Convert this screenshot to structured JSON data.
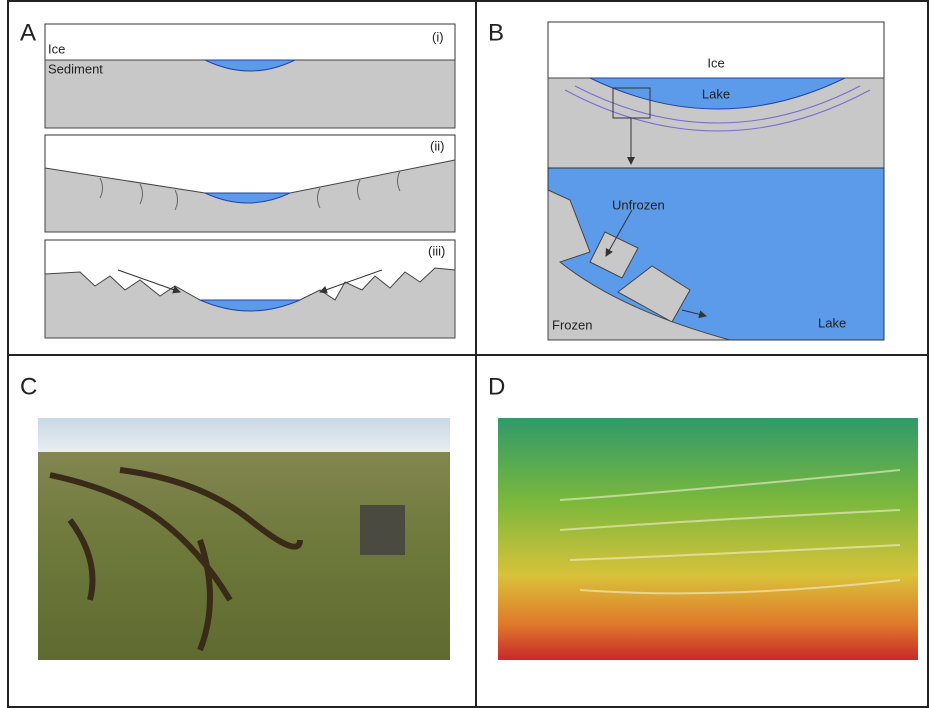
{
  "panel_a": {
    "label": "A",
    "ice": "Ice",
    "sediment": "Sediment",
    "stages": [
      "(i)",
      "(ii)",
      "(iii)"
    ]
  },
  "panel_b": {
    "label": "B",
    "ice": "Ice",
    "lake": "Lake",
    "unfrozen": "Unfrozen",
    "frozen": "Frozen",
    "lake_detail": "Lake"
  },
  "panel_c": {
    "label": "C"
  },
  "panel_d": {
    "label": "D"
  }
}
